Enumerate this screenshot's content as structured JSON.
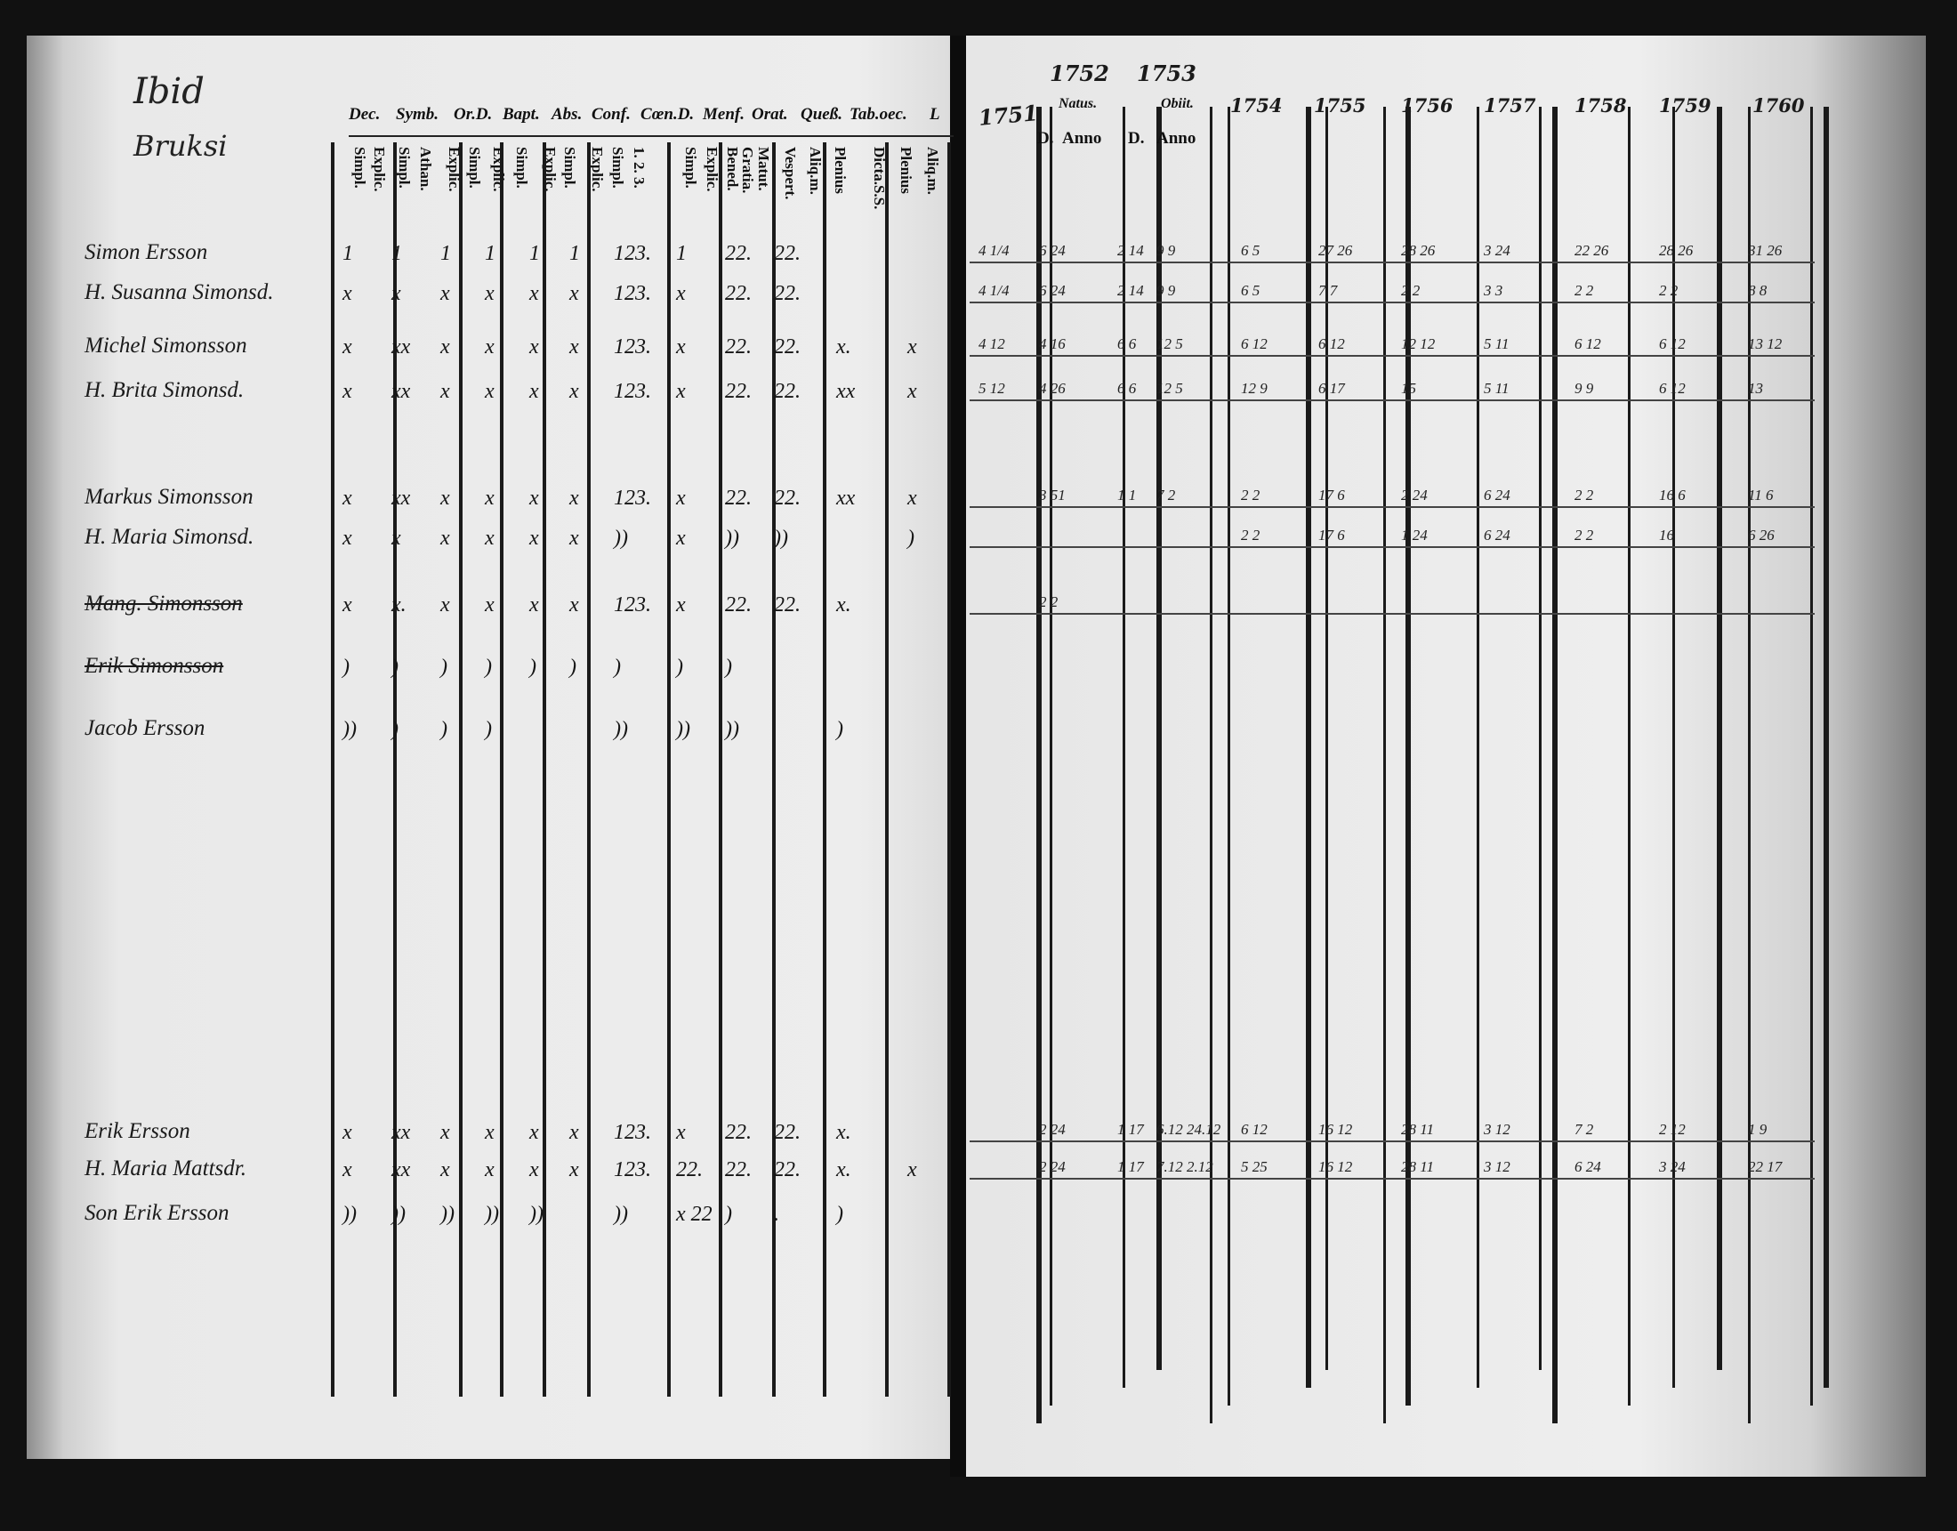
{
  "left_page": {
    "margin_note": [
      "Ibid",
      "Bruksi"
    ],
    "headers": [
      "Dec.",
      "Symb.",
      "Or.D.",
      "Bapt.",
      "Abs.",
      "Conf.",
      "Cœn.D.",
      "Menf.",
      "Orat.",
      "Queß.",
      "Tab.oec.",
      "L"
    ],
    "subheaders": [
      "Simpl.",
      "Explic.",
      "Simpl.",
      "Athan.",
      "Explic.",
      "Simpl.",
      "Explic.",
      "Simpl.",
      "Explic.",
      "Simpl.",
      "Explic.",
      "Simpl.",
      "1. 2. 3.",
      "Simpl.",
      "Explic.",
      "Gratia. Bened.",
      "Matut.",
      "Vespert.",
      "Aliq.m.",
      "Plenius",
      "Dicta.S.S.",
      "Plenius",
      "Aliq.m."
    ],
    "rows": [
      {
        "name": "Simon Ersson",
        "struck": false,
        "marks": [
          "1",
          "1",
          "1",
          "1",
          "1",
          "1",
          "123.",
          "1",
          "22.",
          "22."
        ]
      },
      {
        "name": "H. Susanna Simonsd.",
        "struck": false,
        "marks": [
          "x",
          "x",
          "x",
          "x",
          "x",
          "x",
          "123.",
          "x",
          "22.",
          "22."
        ]
      },
      {
        "name": "Michel Simonsson",
        "struck": false,
        "marks": [
          "x",
          "xx",
          "x",
          "x",
          "x",
          "x",
          "123.",
          "x",
          "22.",
          "22.",
          "x.",
          "x"
        ]
      },
      {
        "name": "H. Brita Simonsd.",
        "struck": false,
        "marks": [
          "x",
          "xx",
          "x",
          "x",
          "x",
          "x",
          "123.",
          "x",
          "22.",
          "22.",
          "xx",
          "x"
        ]
      },
      {
        "name": "Markus Simonsson",
        "struck": false,
        "marks": [
          "x",
          "xx",
          "x",
          "x",
          "x",
          "x",
          "123.",
          "x",
          "22.",
          "22.",
          "xx",
          "x"
        ]
      },
      {
        "name": "H. Maria Simonsd.",
        "struck": false,
        "marks": [
          "x",
          "x",
          "x",
          "x",
          "x",
          "x",
          "))",
          "x",
          "))",
          "))",
          "",
          ")"
        ]
      },
      {
        "name": "Mang. Simonsson",
        "struck": true,
        "marks": [
          "x",
          "x.",
          "x",
          "x",
          "x",
          "x",
          "123.",
          "x",
          "22.",
          "22.",
          "x."
        ]
      },
      {
        "name": "Erik Simonsson",
        "struck": true,
        "marks": [
          ")",
          ")",
          ")",
          ")",
          ")",
          ")",
          ")",
          ")",
          ")",
          ""
        ]
      },
      {
        "name": "Jacob Ersson",
        "struck": false,
        "marks": [
          "))",
          ")",
          ")",
          ")",
          "",
          "",
          "))",
          "))",
          "))",
          "",
          ")"
        ]
      },
      {
        "name": "Erik Ersson",
        "struck": false,
        "marks": [
          "x",
          "xx",
          "x",
          "x",
          "x",
          "x",
          "123.",
          "x",
          "22.",
          "22.",
          "x."
        ]
      },
      {
        "name": "H. Maria Mattsdr.",
        "struck": false,
        "marks": [
          "x",
          "xx",
          "x",
          "x",
          "x",
          "x",
          "123.",
          "22.",
          "22.",
          "22.",
          "x.",
          "x"
        ]
      },
      {
        "name": "Son Erik Ersson",
        "struck": false,
        "marks": [
          "))",
          "))",
          "))",
          "))",
          "))",
          "",
          "))",
          "x 22",
          ")",
          ".",
          ")"
        ]
      }
    ]
  },
  "right_page": {
    "years_top": [
      "1751",
      "1752",
      "1753"
    ],
    "natus": {
      "label": "Natus.",
      "cols": [
        "D.",
        "Anno"
      ]
    },
    "obiit": {
      "label": "Obiit.",
      "cols": [
        "D.",
        "Anno"
      ]
    },
    "years": [
      "1754",
      "1755",
      "1756",
      "1757",
      "1758",
      "1759",
      "1760"
    ],
    "rows": [
      [
        "4 1/4",
        "6 24",
        "2 14",
        "9 9",
        "6 5",
        "27 26",
        "28 26",
        "3 24",
        "22 26",
        "28 26",
        "31 26"
      ],
      [
        "4 1/4",
        "6 24",
        "2 14",
        "9 9",
        "6 5",
        "7 7",
        "2 2",
        "3 3",
        "2 2",
        "2 2",
        "8 8"
      ],
      [
        "4 12",
        "4 16",
        "6 6",
        "12 5",
        "6 12",
        "6 12",
        "12 12",
        "5 11",
        "6 12",
        "6 12",
        "13 12"
      ],
      [
        "5 12",
        "4 26",
        "6 6",
        "12 5",
        "12 9",
        "6 17",
        "15",
        "5 11",
        "9 9",
        "6 12",
        "13"
      ],
      [
        "",
        "3 51",
        "1 1",
        "7 2",
        "2 2",
        "17 6",
        "2 24",
        "6 24",
        "2 2",
        "16 6",
        "11 6"
      ],
      [
        "",
        "",
        "",
        "",
        "2 2",
        "17 6",
        "1 24",
        "6 24",
        "2 2",
        "16",
        "6 26"
      ],
      [
        "",
        "2 2",
        "",
        "",
        "",
        "",
        "",
        "",
        "",
        "",
        ""
      ],
      [],
      [],
      [
        "",
        "2 24",
        "1 17",
        "6.12 24.12",
        "6 12",
        "16 12",
        "28 11",
        "3 12",
        "7 2",
        "2 12",
        "1 9"
      ],
      [
        "",
        "2 24",
        "1 17",
        "7.12 2.12",
        "5 25",
        "16 12",
        "28 11",
        "3 12",
        "6 24",
        "3 24",
        "22 17"
      ],
      []
    ]
  }
}
